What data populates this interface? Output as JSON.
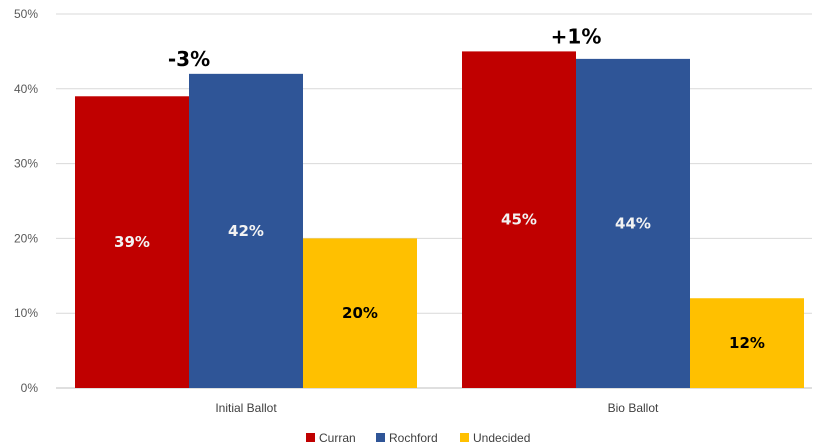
{
  "chart_data": {
    "type": "bar",
    "categories": [
      "Initial Ballot",
      "Bio Ballot"
    ],
    "series": [
      {
        "name": "Curran",
        "values": [
          39,
          45
        ],
        "labels": [
          "39%",
          "45%"
        ],
        "color": "#C00000",
        "label_color": "#F2F2F2"
      },
      {
        "name": "Rochford",
        "values": [
          42,
          44
        ],
        "labels": [
          "42%",
          "44%"
        ],
        "color": "#2F5597",
        "label_color": "#F2F2F2"
      },
      {
        "name": "Undecided",
        "values": [
          20,
          12
        ],
        "labels": [
          "20%",
          "12%"
        ],
        "color": "#FFC000",
        "label_color": "#000000"
      }
    ],
    "annotations": [
      "-3%",
      "+1%"
    ],
    "y_ticks": [
      "0%",
      "10%",
      "20%",
      "30%",
      "40%",
      "50%"
    ],
    "ylim": [
      0,
      50
    ],
    "grid": true,
    "legend": "bottom",
    "title": "",
    "xlabel": "",
    "ylabel": ""
  }
}
